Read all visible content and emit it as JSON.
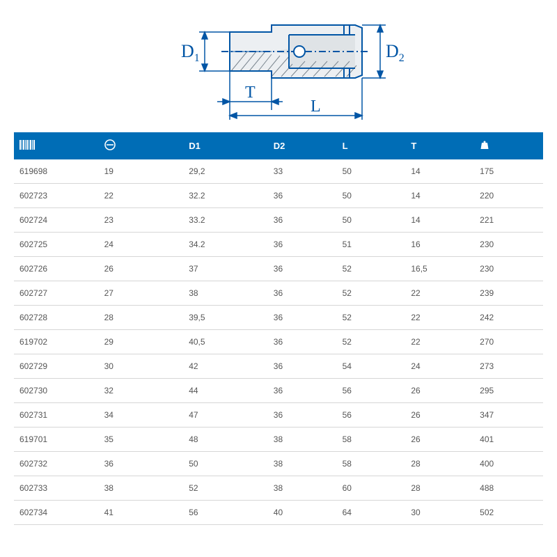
{
  "figure": {
    "label_D1": "D",
    "label_D1_sub": "1",
    "label_D2": "D",
    "label_D2_sub": "2",
    "label_T": "T",
    "label_L": "L",
    "line_color": "#0055a5",
    "fill_color": "#dfe3e6",
    "hatch_color": "#7c8790"
  },
  "table": {
    "header_bg": "#006db6",
    "header_fg": "#ffffff",
    "border_color": "#d6d6d6",
    "columns": [
      "code",
      "size",
      "D1",
      "D2",
      "L",
      "T",
      "weight"
    ],
    "column_widths_pct": [
      16,
      16,
      16,
      13,
      13,
      13,
      13
    ],
    "header_labels": {
      "code": "",
      "size": "",
      "D1": "D1",
      "D2": "D2",
      "L": "L",
      "T": "T",
      "weight": ""
    },
    "rows": [
      [
        "619698",
        "19",
        "29,2",
        "33",
        "50",
        "14",
        "175"
      ],
      [
        "602723",
        "22",
        "32.2",
        "36",
        "50",
        "14",
        "220"
      ],
      [
        "602724",
        "23",
        "33.2",
        "36",
        "50",
        "14",
        "221"
      ],
      [
        "602725",
        "24",
        "34.2",
        "36",
        "51",
        "16",
        "230"
      ],
      [
        "602726",
        "26",
        "37",
        "36",
        "52",
        "16,5",
        "230"
      ],
      [
        "602727",
        "27",
        "38",
        "36",
        "52",
        "22",
        "239"
      ],
      [
        "602728",
        "28",
        "39,5",
        "36",
        "52",
        "22",
        "242"
      ],
      [
        "619702",
        "29",
        "40,5",
        "36",
        "52",
        "22",
        "270"
      ],
      [
        "602729",
        "30",
        "42",
        "36",
        "54",
        "24",
        "273"
      ],
      [
        "602730",
        "32",
        "44",
        "36",
        "56",
        "26",
        "295"
      ],
      [
        "602731",
        "34",
        "47",
        "36",
        "56",
        "26",
        "347"
      ],
      [
        "619701",
        "35",
        "48",
        "38",
        "58",
        "26",
        "401"
      ],
      [
        "602732",
        "36",
        "50",
        "38",
        "58",
        "28",
        "400"
      ],
      [
        "602733",
        "38",
        "52",
        "38",
        "60",
        "28",
        "488"
      ],
      [
        "602734",
        "41",
        "56",
        "40",
        "64",
        "30",
        "502"
      ]
    ]
  }
}
